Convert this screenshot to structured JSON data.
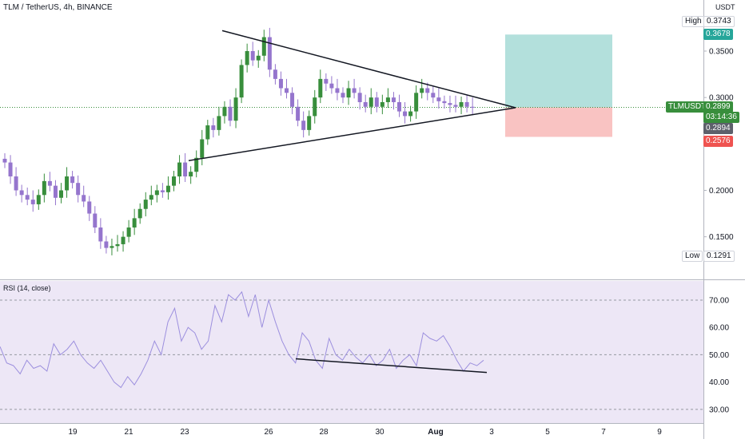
{
  "header": {
    "title": "TLM / TetherUS, 4h, BINANCE"
  },
  "unit_top": "USDT",
  "rsi_label": "RSI (14, close)",
  "symbol_badge": "TLMUSDT",
  "price_tags": {
    "high_label": "High",
    "high_value": "0.3743",
    "target_value": "0.3678",
    "last_value": "0.2899",
    "countdown": "03:14:36",
    "prev_value": "0.2894",
    "stop_value": "0.2576",
    "low_label": "Low",
    "low_value": "0.1291"
  },
  "colors": {
    "up": "#26a69a",
    "up_fill": "#388e3c",
    "down": "#9575cd",
    "rsi_line": "#9c8fde",
    "target_zone": "#26a69a",
    "stop_zone": "#ef5350"
  },
  "chart_data": [
    {
      "type": "candlestick",
      "title": "TLM / TetherUS, 4h, BINANCE",
      "x_tick_labels": [
        "19",
        "21",
        "23",
        "26",
        "28",
        "30",
        "Aug",
        "3",
        "5",
        "7",
        "9"
      ],
      "y_tick_labels": [
        "0.3500",
        "0.3000",
        "0.2000",
        "0.1500"
      ],
      "ylim": [
        0.105,
        0.405
      ],
      "close_path": [
        0.23,
        0.215,
        0.2,
        0.195,
        0.19,
        0.185,
        0.195,
        0.21,
        0.205,
        0.192,
        0.2,
        0.215,
        0.208,
        0.195,
        0.188,
        0.175,
        0.16,
        0.145,
        0.138,
        0.14,
        0.142,
        0.15,
        0.16,
        0.17,
        0.18,
        0.19,
        0.195,
        0.2,
        0.198,
        0.205,
        0.215,
        0.23,
        0.215,
        0.22,
        0.235,
        0.255,
        0.27,
        0.265,
        0.28,
        0.29,
        0.275,
        0.3,
        0.335,
        0.35,
        0.34,
        0.345,
        0.365,
        0.33,
        0.32,
        0.31,
        0.305,
        0.29,
        0.275,
        0.265,
        0.28,
        0.3,
        0.32,
        0.315,
        0.31,
        0.305,
        0.3,
        0.31,
        0.305,
        0.295,
        0.29,
        0.3,
        0.29,
        0.295,
        0.3,
        0.295,
        0.285,
        0.28,
        0.285,
        0.305,
        0.31,
        0.305,
        0.3,
        0.296,
        0.294,
        0.292,
        0.29,
        0.295,
        0.29,
        0.289
      ],
      "triangle": {
        "upper": [
          0.372,
          0.289
        ],
        "lower": [
          0.232,
          0.289
        ]
      },
      "position": {
        "entry": 0.2894,
        "target": 0.3678,
        "stop": 0.2576
      }
    },
    {
      "type": "line",
      "title": "RSI (14, close)",
      "y_tick_labels": [
        "70.00",
        "60.00",
        "50.00",
        "40.00",
        "30.00"
      ],
      "ylim": [
        25,
        77
      ],
      "bands": [
        70,
        50,
        30
      ],
      "values": [
        53,
        47,
        46,
        43,
        48,
        45,
        46,
        44,
        54,
        50,
        52,
        55,
        50,
        47,
        45,
        48,
        44,
        40,
        38,
        42,
        39,
        43,
        48,
        55,
        50,
        62,
        67,
        55,
        60,
        58,
        52,
        55,
        68,
        62,
        72,
        70,
        73,
        64,
        72,
        60,
        70,
        62,
        55,
        50,
        47,
        58,
        55,
        48,
        45,
        56,
        50,
        48,
        52,
        49,
        47,
        50,
        46,
        48,
        52,
        45,
        48,
        50,
        46,
        58,
        56,
        55,
        57,
        53,
        48,
        44,
        47,
        46,
        48
      ],
      "divergence_line": [
        48.5,
        43.5
      ]
    }
  ]
}
